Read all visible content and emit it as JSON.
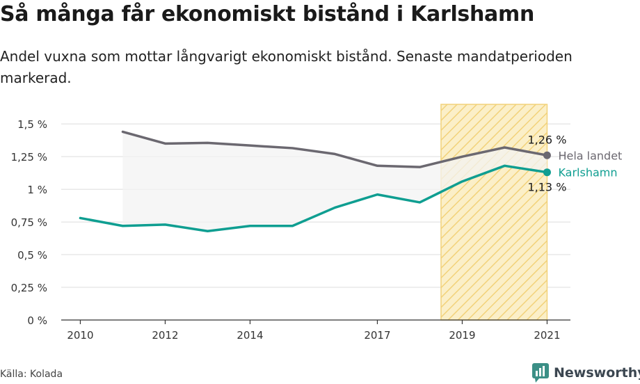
{
  "header": {
    "title": "Så många får ekonomiskt bistånd i Karlshamn",
    "subtitle": "Andel vuxna som mottar långvarigt ekonomiskt bistånd. Senaste mandatperioden markerad."
  },
  "footer": {
    "source": "Källa: Kolada",
    "brand": "Newsworthy"
  },
  "colors": {
    "national": "#6b6870",
    "local": "#0f9e91",
    "highlight_stroke": "#f2d27a",
    "highlight_fill": "#fbefc8",
    "gap_fill": "#f3f3f3",
    "grid": "#dcdcdc"
  },
  "chart_data": {
    "type": "line",
    "ylim": [
      0,
      1.65
    ],
    "xlim": [
      2009.55,
      2021.55
    ],
    "y_ticks": [
      0,
      0.25,
      0.5,
      0.75,
      1,
      1.25,
      1.5
    ],
    "y_tick_labels": [
      "0 %",
      "0,25 %",
      "0,5 %",
      "0,75 %",
      "1 %",
      "1,25 %",
      "1,5 %"
    ],
    "x_ticks": [
      2010,
      2012,
      2014,
      2017,
      2019,
      2021
    ],
    "x_tick_labels": [
      "2010",
      "2012",
      "2014",
      "2017",
      "2019",
      "2021"
    ],
    "highlight_period": [
      2018.5,
      2021
    ],
    "series": [
      {
        "name": "Hela landet",
        "key": "national",
        "end_label": "1,26 %",
        "points": [
          [
            2011,
            1.44
          ],
          [
            2012,
            1.35
          ],
          [
            2013,
            1.355
          ],
          [
            2014,
            1.335
          ],
          [
            2015,
            1.315
          ],
          [
            2016,
            1.27
          ],
          [
            2017,
            1.18
          ],
          [
            2018,
            1.17
          ],
          [
            2019,
            1.25
          ],
          [
            2020,
            1.32
          ],
          [
            2021,
            1.26
          ]
        ]
      },
      {
        "name": "Karlshamn",
        "key": "local",
        "end_label": "1,13 %",
        "points": [
          [
            2010,
            0.78
          ],
          [
            2011,
            0.72
          ],
          [
            2012,
            0.73
          ],
          [
            2013,
            0.68
          ],
          [
            2014,
            0.72
          ],
          [
            2015,
            0.72
          ],
          [
            2016,
            0.86
          ],
          [
            2017,
            0.96
          ],
          [
            2018,
            0.9
          ],
          [
            2019,
            1.06
          ],
          [
            2020,
            1.18
          ],
          [
            2021,
            1.13
          ]
        ]
      }
    ]
  }
}
